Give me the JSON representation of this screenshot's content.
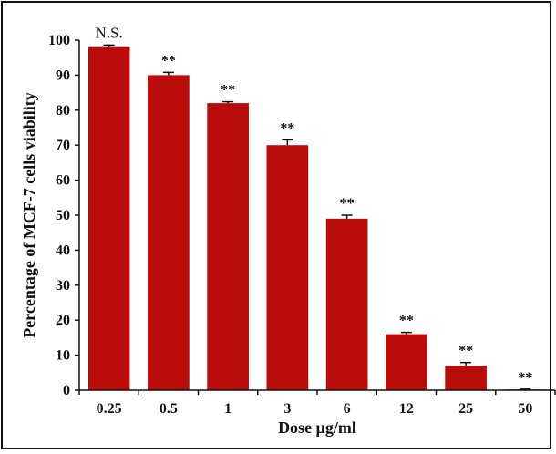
{
  "chart_data": {
    "type": "bar",
    "categories": [
      "0.25",
      "0.5",
      "1",
      "3",
      "6",
      "12",
      "25",
      "50"
    ],
    "values": [
      98,
      90,
      82,
      70,
      49,
      16,
      7,
      0.2
    ],
    "errors": [
      0.6,
      0.8,
      0.4,
      1.5,
      1.0,
      0.5,
      0.9,
      0.1
    ],
    "annotations": [
      "N.S.",
      "**",
      "**",
      "**",
      "**",
      "**",
      "**",
      "**"
    ],
    "title": "",
    "xlabel": "Dose µg/ml",
    "ylabel": "Percentage of MCF-7 cells viability",
    "ylim": [
      0,
      100
    ],
    "yticks": [
      0,
      10,
      20,
      30,
      40,
      50,
      60,
      70,
      80,
      90,
      100
    ],
    "bar_color": "#bb0c0c",
    "grid": false,
    "legend": "none"
  }
}
